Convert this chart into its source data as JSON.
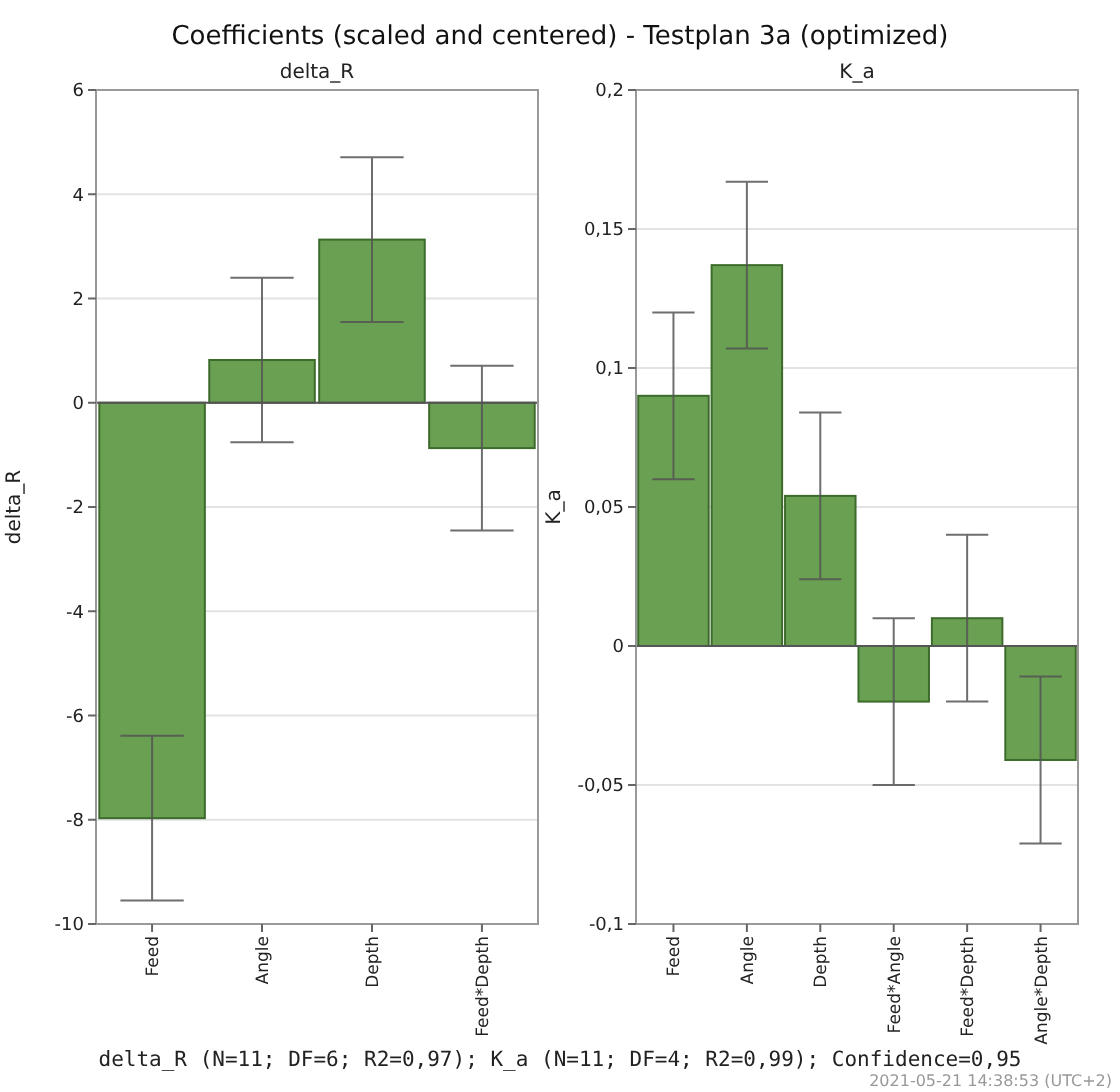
{
  "chart_data": [
    {
      "type": "bar",
      "title": "Coefficients (scaled and centered) - Testplan 3a (optimized)",
      "subtitle": "delta_R",
      "ylabel": "delta_R",
      "categories": [
        "Feed",
        "Angle",
        "Depth",
        "Feed*Depth"
      ],
      "values": [
        -7.97,
        0.82,
        3.13,
        -0.87
      ],
      "errors": [
        1.58,
        1.58,
        1.58,
        1.58
      ],
      "color": "#6aa051",
      "ylim": [
        -10,
        6
      ],
      "yticks": [
        -10,
        -8,
        -6,
        -4,
        -2,
        0,
        2,
        4,
        6
      ],
      "grid": "y",
      "annotations": [
        "delta_R (N=11; DF=6; R2=0,97); K_a (N=11; DF=4; R2=0,99); Confidence=0,95",
        "2021-05-21 14:38:53 (UTC+2)"
      ]
    },
    {
      "type": "bar",
      "subtitle": "K_a",
      "ylabel": "K_a",
      "categories": [
        "Feed",
        "Angle",
        "Depth",
        "Feed*Angle",
        "Feed*Depth",
        "Angle*Depth"
      ],
      "values": [
        0.09,
        0.137,
        0.054,
        -0.02,
        0.01,
        -0.041
      ],
      "errors": [
        0.03,
        0.03,
        0.03,
        0.03,
        0.03,
        0.03
      ],
      "color": "#6aa051",
      "ylim": [
        -0.1,
        0.2
      ],
      "yticks": [
        {
          "value": -0.1,
          "label": "-0,1"
        },
        {
          "value": -0.05,
          "label": "-0,05"
        },
        {
          "value": 0,
          "label": "0"
        },
        {
          "value": 0.05,
          "label": "0,05"
        },
        {
          "value": 0.1,
          "label": "0,1"
        },
        {
          "value": 0.15,
          "label": "0,15"
        },
        {
          "value": 0.2,
          "label": "0,2"
        }
      ],
      "grid": "y"
    }
  ]
}
